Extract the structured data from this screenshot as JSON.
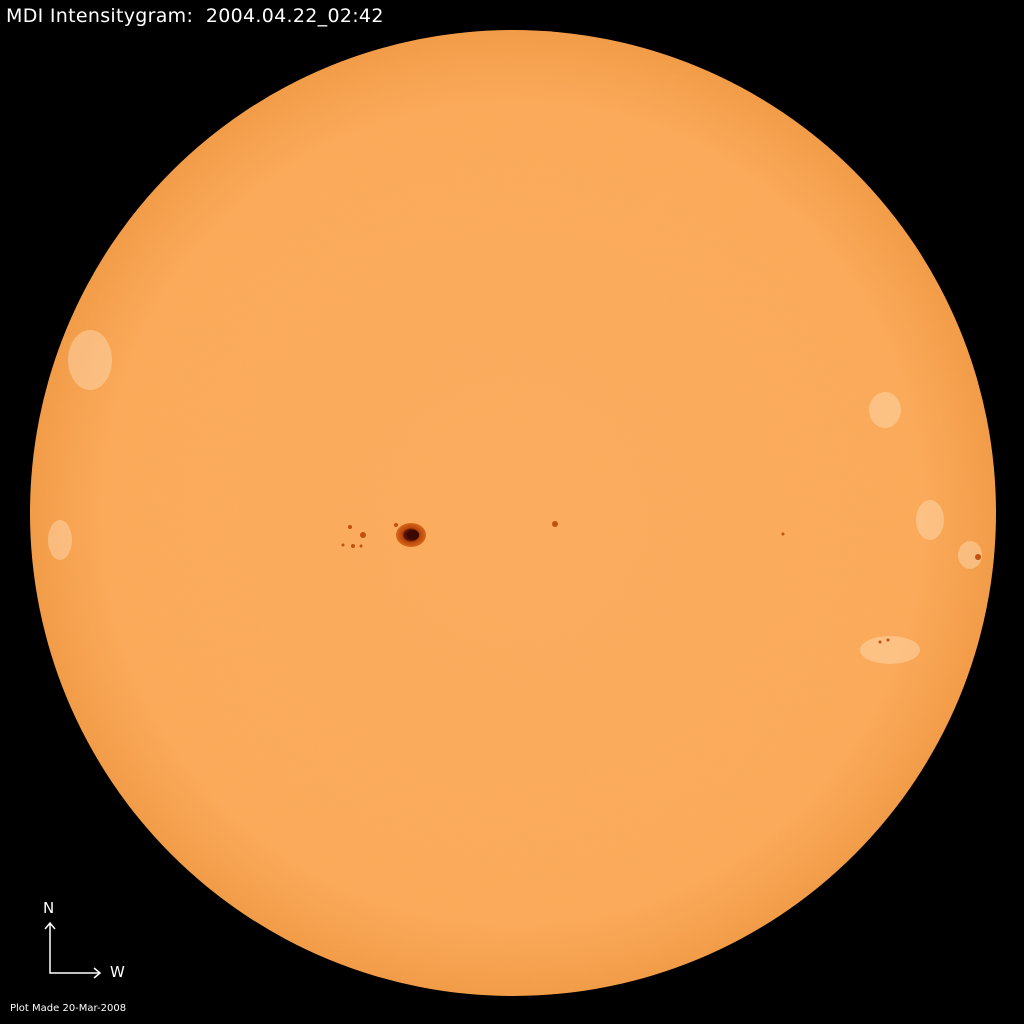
{
  "title": "MDI Intensitygram:  2004.04.22_02:42",
  "compass": {
    "north_label": "N",
    "west_label": "W"
  },
  "footer": "Plot Made 20-Mar-2008",
  "colors": {
    "background": "#000000",
    "disk": "#fba95a",
    "limb": "#f29a45",
    "sunspot_umbra": "#3a0800",
    "sunspot_penumbra": "#c2500f",
    "facula": "#fdd4a6"
  }
}
